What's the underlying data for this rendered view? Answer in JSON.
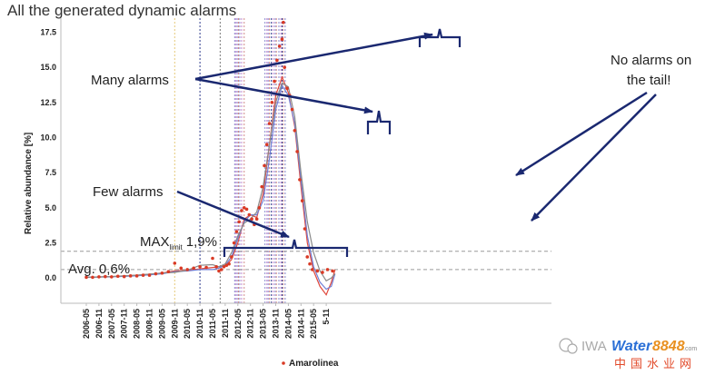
{
  "title": "All the generated dynamic alarms",
  "chart_data": {
    "type": "scatter",
    "ylabel": "Relative abundance [%]",
    "ylim": [
      -1.8,
      18.5
    ],
    "yticks": [
      0.0,
      2.5,
      5.0,
      7.5,
      10.0,
      12.5,
      15.0,
      17.5
    ],
    "ytick_labels": [
      "0.0",
      "2.5",
      "5.0",
      "7.5",
      "10.0",
      "12.5",
      "15.0",
      "17.5"
    ],
    "xticks": [
      "2006-05",
      "2006-11",
      "2007-05",
      "2007-11",
      "2008-05",
      "2008-11",
      "2009-05",
      "2009-11",
      "2010-05",
      "2010-11",
      "2011-05",
      "2011-11",
      "2012-05",
      "2012-11",
      "2013-05",
      "2013-11",
      "2014-05",
      "2014-11",
      "2015-05",
      "5-11"
    ],
    "legend": "Amarolinea",
    "marker_color": "#d93a25",
    "max_limit": 1.9,
    "avg": 0.6,
    "series": [
      {
        "points": [
          [
            0.0,
            0.05
          ],
          [
            0.5,
            0.05
          ],
          [
            1.0,
            0.08
          ],
          [
            1.5,
            0.1
          ],
          [
            2.0,
            0.08
          ],
          [
            2.5,
            0.12
          ],
          [
            3.0,
            0.1
          ],
          [
            3.5,
            0.15
          ],
          [
            4.0,
            0.15
          ],
          [
            4.5,
            0.2
          ],
          [
            5.0,
            0.2
          ],
          [
            5.5,
            0.3
          ],
          [
            6.0,
            0.35
          ],
          [
            6.5,
            0.45
          ],
          [
            7.0,
            1.05
          ],
          [
            7.5,
            0.7
          ],
          [
            8.0,
            0.6
          ],
          [
            8.5,
            0.7
          ],
          [
            9.0,
            0.8
          ],
          [
            9.5,
            0.75
          ],
          [
            10.0,
            1.4
          ],
          [
            10.3,
            0.8
          ],
          [
            10.5,
            0.5
          ],
          [
            10.7,
            0.6
          ],
          [
            10.9,
            0.8
          ],
          [
            11.1,
            0.9
          ],
          [
            11.3,
            1.0
          ],
          [
            11.5,
            1.5
          ],
          [
            11.7,
            2.5
          ],
          [
            11.9,
            3.3
          ],
          [
            12.1,
            4.0
          ],
          [
            12.3,
            4.8
          ],
          [
            12.5,
            5.0
          ],
          [
            12.7,
            4.9
          ],
          [
            12.9,
            4.5
          ],
          [
            13.1,
            4.2
          ],
          [
            13.3,
            3.8
          ],
          [
            13.5,
            4.2
          ],
          [
            13.7,
            5.0
          ],
          [
            13.9,
            6.5
          ],
          [
            14.1,
            8.0
          ],
          [
            14.3,
            9.5
          ],
          [
            14.5,
            11.0
          ],
          [
            14.7,
            12.5
          ],
          [
            14.9,
            14.0
          ],
          [
            15.1,
            15.5
          ],
          [
            15.3,
            16.5
          ],
          [
            15.5,
            17.0
          ],
          [
            15.6,
            18.2
          ],
          [
            15.7,
            15.0
          ],
          [
            15.9,
            13.5
          ],
          [
            16.1,
            13.0
          ],
          [
            16.3,
            12.0
          ],
          [
            16.5,
            10.5
          ],
          [
            16.7,
            9.0
          ],
          [
            16.9,
            7.0
          ],
          [
            17.1,
            5.5
          ],
          [
            17.3,
            3.5
          ],
          [
            17.5,
            1.5
          ],
          [
            17.7,
            1.0
          ],
          [
            17.9,
            0.6
          ],
          [
            18.3,
            0.5
          ],
          [
            18.7,
            0.4
          ],
          [
            19.1,
            0.6
          ],
          [
            19.5,
            0.5
          ]
        ]
      }
    ],
    "fit_lines": [
      {
        "color": "#e0483c",
        "points": [
          [
            0,
            0.05
          ],
          [
            2,
            0.1
          ],
          [
            4,
            0.2
          ],
          [
            6,
            0.35
          ],
          [
            7,
            0.5
          ],
          [
            8,
            0.55
          ],
          [
            9,
            0.65
          ],
          [
            10,
            0.75
          ],
          [
            11,
            0.85
          ],
          [
            11.5,
            1.3
          ],
          [
            12,
            2.5
          ],
          [
            12.5,
            4.2
          ],
          [
            13,
            4.5
          ],
          [
            13.5,
            4.3
          ],
          [
            14,
            6.0
          ],
          [
            14.5,
            9.5
          ],
          [
            15,
            13.0
          ],
          [
            15.5,
            14.3
          ],
          [
            16,
            13.2
          ],
          [
            16.5,
            10.8
          ],
          [
            17,
            6.5
          ],
          [
            17.5,
            2.5
          ],
          [
            18,
            0.5
          ],
          [
            18.5,
            -0.6
          ],
          [
            19,
            -1.2
          ],
          [
            19.4,
            -0.3
          ],
          [
            19.7,
            0.6
          ]
        ]
      },
      {
        "color": "#6f7fd6",
        "points": [
          [
            0,
            0.05
          ],
          [
            2,
            0.08
          ],
          [
            4,
            0.15
          ],
          [
            6,
            0.3
          ],
          [
            7,
            0.45
          ],
          [
            8,
            0.5
          ],
          [
            9,
            0.6
          ],
          [
            10,
            0.6
          ],
          [
            10.5,
            0.7
          ],
          [
            11,
            0.9
          ],
          [
            11.5,
            1.5
          ],
          [
            12,
            2.8
          ],
          [
            12.5,
            4.0
          ],
          [
            13,
            4.5
          ],
          [
            13.5,
            4.5
          ],
          [
            14,
            5.5
          ],
          [
            14.5,
            8.5
          ],
          [
            15,
            12.0
          ],
          [
            15.5,
            13.7
          ],
          [
            16,
            13.0
          ],
          [
            16.5,
            11.0
          ],
          [
            17,
            7.0
          ],
          [
            17.5,
            3.0
          ],
          [
            18,
            0.8
          ],
          [
            18.5,
            -0.3
          ],
          [
            19,
            -0.8
          ],
          [
            19.4,
            -0.6
          ],
          [
            19.7,
            0.3
          ]
        ]
      },
      {
        "color": "#8a8a8a",
        "points": [
          [
            0,
            0.05
          ],
          [
            2,
            0.1
          ],
          [
            4,
            0.2
          ],
          [
            6,
            0.35
          ],
          [
            7,
            0.4
          ],
          [
            8,
            0.55
          ],
          [
            9,
            0.9
          ],
          [
            10,
            0.95
          ],
          [
            10.5,
            0.8
          ],
          [
            11,
            1.0
          ],
          [
            11.5,
            1.8
          ],
          [
            12,
            3.0
          ],
          [
            12.5,
            3.9
          ],
          [
            13,
            4.2
          ],
          [
            13.5,
            4.7
          ],
          [
            14,
            6.5
          ],
          [
            14.5,
            9.5
          ],
          [
            15,
            12.5
          ],
          [
            15.5,
            13.9
          ],
          [
            16,
            13.6
          ],
          [
            16.5,
            11.5
          ],
          [
            17,
            7.5
          ],
          [
            17.5,
            4.0
          ],
          [
            18,
            1.8
          ],
          [
            18.5,
            0.5
          ],
          [
            19,
            -0.2
          ],
          [
            19.4,
            0.0
          ],
          [
            19.7,
            0.3
          ]
        ]
      }
    ],
    "alarm_lines": [
      {
        "x": 7.0,
        "color": "#e6c97a"
      },
      {
        "x": 9.0,
        "color": "#2d3a8c"
      },
      {
        "x": 10.6,
        "color": "#777777"
      },
      {
        "x": 11.75,
        "color": "#8a8ad0"
      },
      {
        "x": 11.85,
        "color": "#c58ad0"
      },
      {
        "x": 11.95,
        "color": "#8a8ad0"
      },
      {
        "x": 12.05,
        "color": "#d08a8a"
      },
      {
        "x": 12.15,
        "color": "#8a8ad0"
      },
      {
        "x": 12.3,
        "color": "#c58ad0"
      },
      {
        "x": 12.5,
        "color": "#d08a8a"
      },
      {
        "x": 14.15,
        "color": "#8a8ad0"
      },
      {
        "x": 14.3,
        "color": "#c58ad0"
      },
      {
        "x": 14.4,
        "color": "#8a8ad0"
      },
      {
        "x": 14.5,
        "color": "#d08a8a"
      },
      {
        "x": 14.65,
        "color": "#2d3a8c"
      },
      {
        "x": 14.8,
        "color": "#c58ad0"
      },
      {
        "x": 14.95,
        "color": "#8a8ad0"
      },
      {
        "x": 15.05,
        "color": "#d08a8a"
      },
      {
        "x": 15.25,
        "color": "#8a8ad0"
      },
      {
        "x": 15.4,
        "color": "#c58ad0"
      },
      {
        "x": 15.5,
        "color": "#2d3a8c"
      },
      {
        "x": 15.6,
        "color": "#d08a8a"
      },
      {
        "x": 15.75,
        "color": "#8a8ad0"
      }
    ]
  },
  "annotations": {
    "many_alarms": "Many alarms",
    "few_alarms": "Few alarms",
    "no_alarms_1": "No alarms on",
    "no_alarms_2": "the tail!",
    "max_limit_prefix": "MAX",
    "max_limit_sub": "limit",
    "max_limit_value": "1,9%",
    "avg_label": "Avg. 0,6%"
  },
  "watermark": {
    "iwa": "IWA",
    "brand": "Water",
    "numbers": "8848",
    "chinese": "中国水业网",
    "small": ".com"
  }
}
